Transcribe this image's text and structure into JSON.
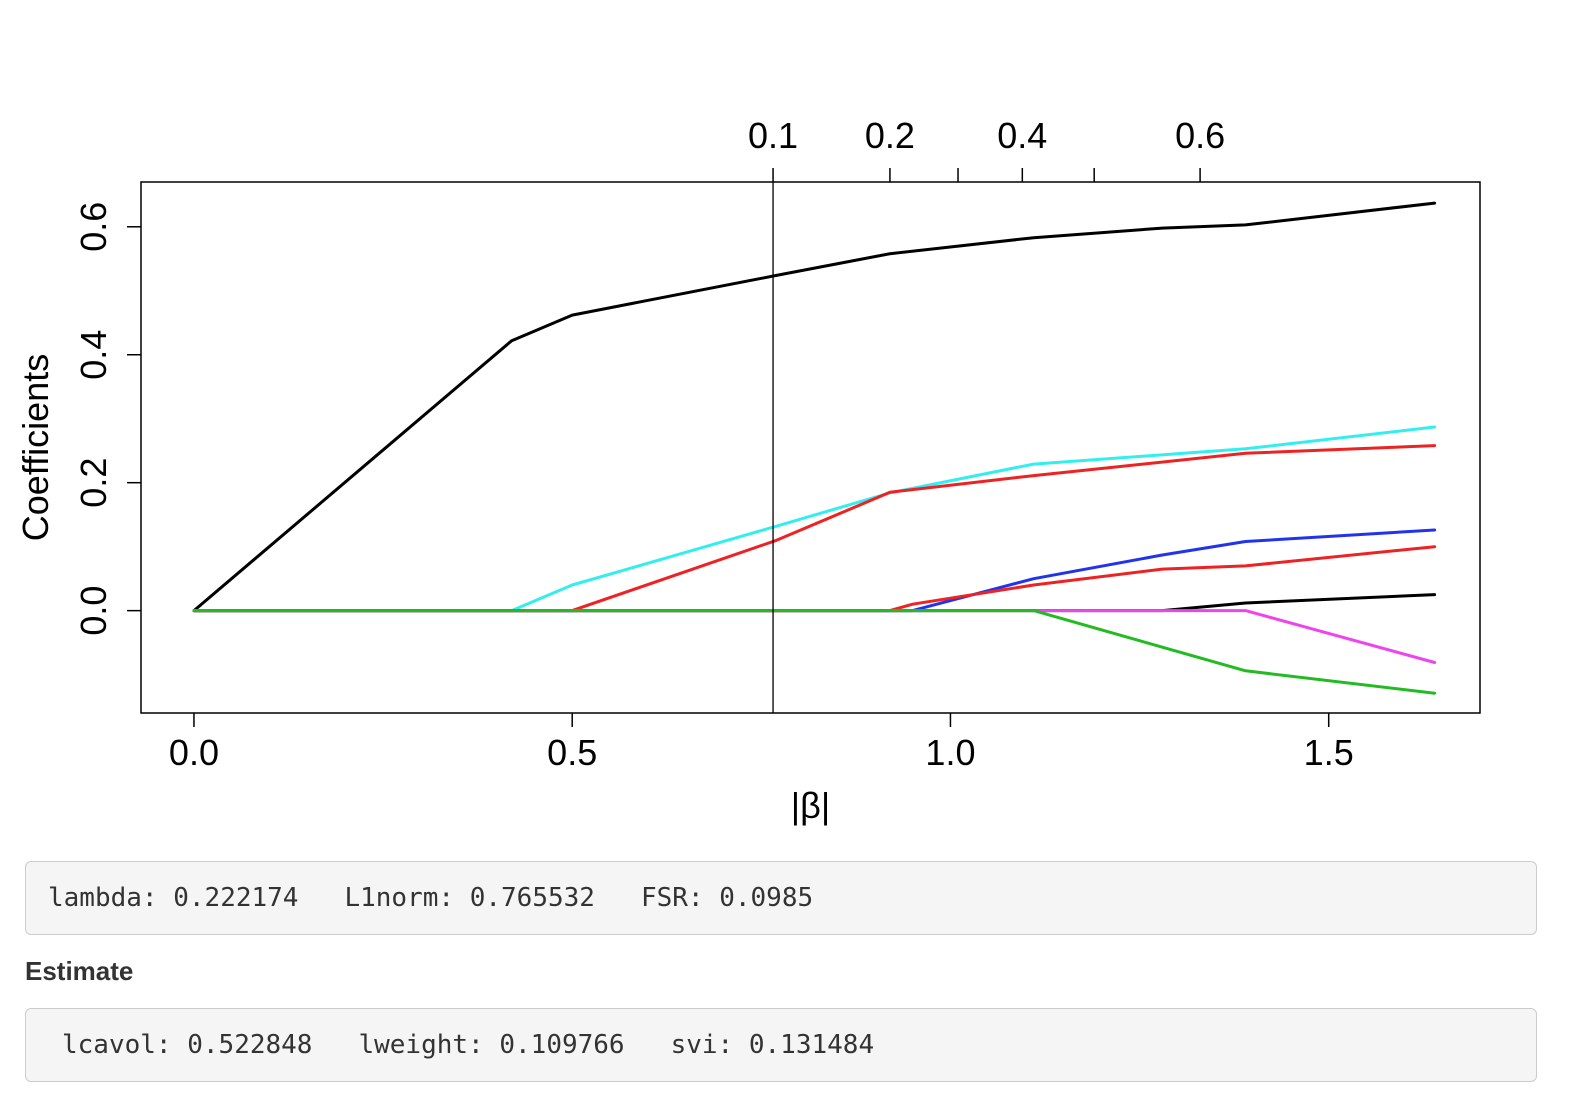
{
  "chart_data": {
    "type": "line",
    "xlabel": "|β|",
    "ylabel": "Coefficients",
    "xlim": [
      -0.07,
      1.7
    ],
    "ylim": [
      -0.16,
      0.67
    ],
    "x_ticks": [
      "0.0",
      "0.5",
      "1.0",
      "1.5"
    ],
    "y_ticks": [
      "0.0",
      "0.2",
      "0.4",
      "0.6"
    ],
    "top_axis": {
      "ticks": [
        {
          "x": 0.7655,
          "label": "0.1"
        },
        {
          "x": 0.92,
          "label": "0.2"
        },
        {
          "x": 1.01,
          "label": ""
        },
        {
          "x": 1.095,
          "label": "0.4"
        },
        {
          "x": 1.19,
          "label": ""
        },
        {
          "x": 1.33,
          "label": "0.6"
        }
      ]
    },
    "vline_x": 0.7655,
    "series": [
      {
        "color": "#000000",
        "points": [
          [
            0,
            0
          ],
          [
            0.42,
            0.422
          ],
          [
            0.5,
            0.462
          ],
          [
            0.77,
            0.524
          ],
          [
            0.92,
            0.558
          ],
          [
            1.11,
            0.583
          ],
          [
            1.28,
            0.598
          ],
          [
            1.39,
            0.603
          ],
          [
            1.64,
            0.637
          ]
        ]
      },
      {
        "color": "#33eeee",
        "points": [
          [
            0,
            0
          ],
          [
            0.42,
            0
          ],
          [
            0.5,
            0.04
          ],
          [
            0.77,
            0.132
          ],
          [
            0.92,
            0.184
          ],
          [
            1.11,
            0.229
          ],
          [
            1.39,
            0.253
          ],
          [
            1.64,
            0.287
          ]
        ]
      },
      {
        "color": "#ee2222",
        "points": [
          [
            0,
            0
          ],
          [
            0.5,
            0
          ],
          [
            0.77,
            0.11
          ],
          [
            0.92,
            0.185
          ],
          [
            1.11,
            0.211
          ],
          [
            1.39,
            0.246
          ],
          [
            1.64,
            0.258
          ]
        ]
      },
      {
        "color": "#2233ee",
        "points": [
          [
            0,
            0
          ],
          [
            0.95,
            0
          ],
          [
            1.11,
            0.05
          ],
          [
            1.28,
            0.087
          ],
          [
            1.39,
            0.108
          ],
          [
            1.64,
            0.126
          ]
        ]
      },
      {
        "color": "#ee2222",
        "points": [
          [
            0,
            0
          ],
          [
            0.92,
            0
          ],
          [
            0.95,
            0.01
          ],
          [
            1.11,
            0.04
          ],
          [
            1.28,
            0.065
          ],
          [
            1.39,
            0.07
          ],
          [
            1.64,
            0.1
          ]
        ]
      },
      {
        "color": "#000000",
        "points": [
          [
            0,
            0
          ],
          [
            1.28,
            0
          ],
          [
            1.39,
            0.012
          ],
          [
            1.64,
            0.025
          ]
        ]
      },
      {
        "color": "#ee44ee",
        "points": [
          [
            0,
            0
          ],
          [
            1.39,
            0
          ],
          [
            1.64,
            -0.081
          ]
        ]
      },
      {
        "color": "#22bb22",
        "points": [
          [
            0,
            0
          ],
          [
            1.11,
            0
          ],
          [
            1.39,
            -0.094
          ],
          [
            1.64,
            -0.129
          ]
        ]
      }
    ]
  },
  "summary": {
    "lambda_label": "lambda:",
    "lambda_value": "0.222174",
    "l1norm_label": "L1norm:",
    "l1norm_value": "0.765532",
    "fsr_label": "FSR:",
    "fsr_value": "0.0985"
  },
  "estimate": {
    "heading": "Estimate",
    "lcavol_label": "lcavol:",
    "lcavol_value": "0.522848",
    "lweight_label": "lweight:",
    "lweight_value": "0.109766",
    "svi_label": "svi:",
    "svi_value": "0.131484"
  }
}
